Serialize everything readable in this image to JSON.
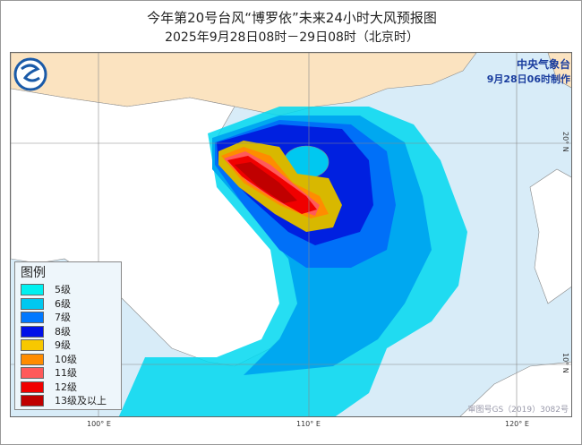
{
  "title": "今年第20号台风“博罗依”未来24小时大风预报图",
  "subtitle": "2025年9月28日08时－29日08时（北京时）",
  "agency": {
    "name": "中央气象台",
    "issued": "9月28日06时制作"
  },
  "legend": {
    "title": "图例",
    "items": [
      {
        "label": "5级",
        "color": "#00f0f0"
      },
      {
        "label": "6级",
        "color": "#00c8f0"
      },
      {
        "label": "7级",
        "color": "#0078ff"
      },
      {
        "label": "8级",
        "color": "#0010e8"
      },
      {
        "label": "9级",
        "color": "#f8c800"
      },
      {
        "label": "10级",
        "color": "#ff8c00"
      },
      {
        "label": "11级",
        "color": "#ff5a5a"
      },
      {
        "label": "12级",
        "color": "#f00000"
      },
      {
        "label": "13级及以上",
        "color": "#c00000"
      }
    ]
  },
  "axes": {
    "lon": [
      "100° E",
      "110° E",
      "120° E"
    ],
    "lat": [
      "20° N",
      "10° N"
    ]
  },
  "approval": "审图号GS（2019）3082号",
  "colors": {
    "land_china": "#fbe3c0",
    "land_other": "#ffffff",
    "sea": "#d8ecf8"
  }
}
